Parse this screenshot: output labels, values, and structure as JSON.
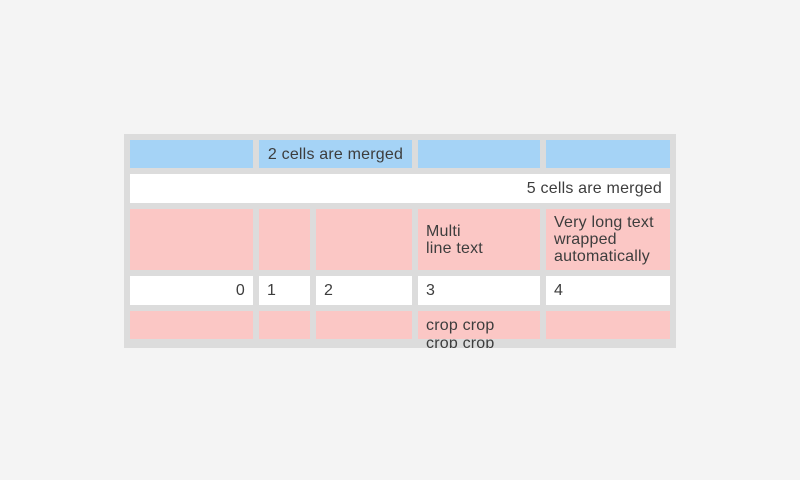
{
  "colors": {
    "page-bg": "#f4f4f4",
    "grid-gray": "#dcdcdc",
    "header-blue": "#a5d3f6",
    "accent-pink": "#fbc7c5",
    "cell-white": "#ffffff",
    "text": "#3d3d3d"
  },
  "grid": {
    "row1": {
      "c1": "",
      "merged2_3": "2 cells are merged",
      "c4": "",
      "c5": ""
    },
    "row2": {
      "merged1_5": "5 cells are merged"
    },
    "row3": {
      "c1": "",
      "c2": "",
      "c3": "",
      "c4": "Multi\nline text",
      "c5": "Very long text wrapped automatically"
    },
    "row4": {
      "c1": "0",
      "c2": "1",
      "c3": "2",
      "c4": "3",
      "c5": "4"
    },
    "row5": {
      "c1": "",
      "c2": "",
      "c3": "",
      "c4": "crop crop\ncrop crop",
      "c5": ""
    }
  }
}
